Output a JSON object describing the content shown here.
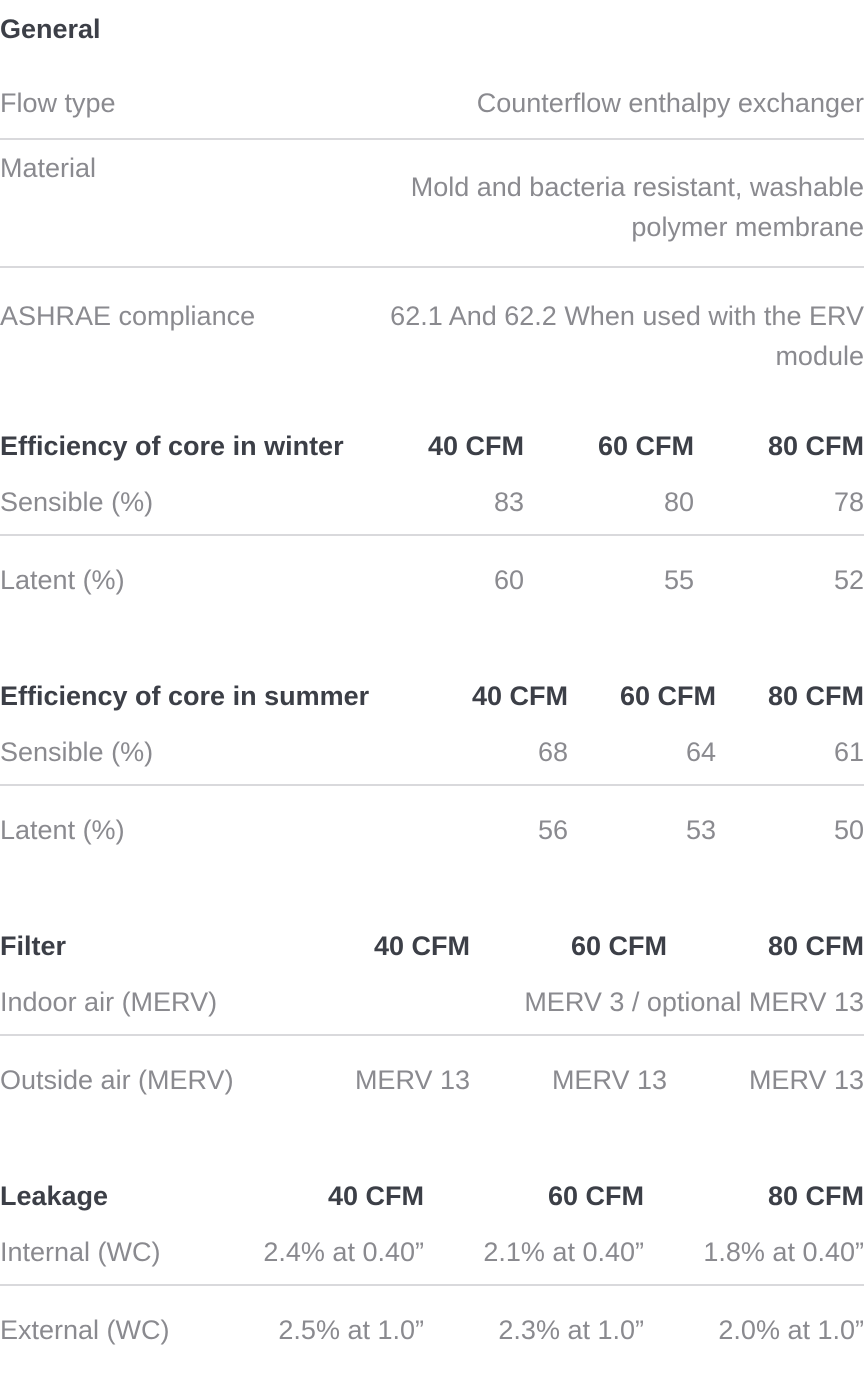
{
  "general": {
    "title": "General",
    "rows": [
      {
        "label": "Flow type",
        "value": "Counterflow enthalpy exchanger"
      },
      {
        "label": "Material",
        "value": "Mold and bacteria resistant, washable polymer membrane"
      },
      {
        "label": "ASHRAE compliance",
        "value": "62.1 And 62.2 When used with the ERV module"
      }
    ]
  },
  "winter": {
    "title": "Efficiency of core in winter",
    "columns": [
      "40 CFM",
      "60 CFM",
      "80 CFM"
    ],
    "rows": [
      {
        "label": "Sensible (%)",
        "values": [
          "83",
          "80",
          "78"
        ]
      },
      {
        "label": "Latent (%)",
        "values": [
          "60",
          "55",
          "52"
        ]
      }
    ]
  },
  "summer": {
    "title": "Efficiency of core in summer",
    "columns": [
      "40 CFM",
      "60 CFM",
      "80 CFM"
    ],
    "rows": [
      {
        "label": "Sensible (%)",
        "values": [
          "68",
          "64",
          "61"
        ]
      },
      {
        "label": "Latent (%)",
        "values": [
          "56",
          "53",
          "50"
        ]
      }
    ]
  },
  "filter": {
    "title": "Filter",
    "columns": [
      "40 CFM",
      "60 CFM",
      "80 CFM"
    ],
    "rows": [
      {
        "label": "Indoor air (MERV)",
        "value": "MERV 3 / optional MERV 13"
      },
      {
        "label": "Outside air (MERV)",
        "values": [
          "MERV 13",
          "MERV 13",
          "MERV 13"
        ]
      }
    ]
  },
  "leakage": {
    "title": "Leakage",
    "columns": [
      "40 CFM",
      "60 CFM",
      "80 CFM"
    ],
    "rows": [
      {
        "label": "Internal (WC)",
        "values": [
          "2.4% at 0.40”",
          "2.1% at 0.40”",
          "1.8% at 0.40”"
        ]
      },
      {
        "label": "External (WC)",
        "values": [
          "2.5% at 1.0”",
          "2.3% at 1.0”",
          "2.0% at 1.0”"
        ]
      }
    ]
  }
}
